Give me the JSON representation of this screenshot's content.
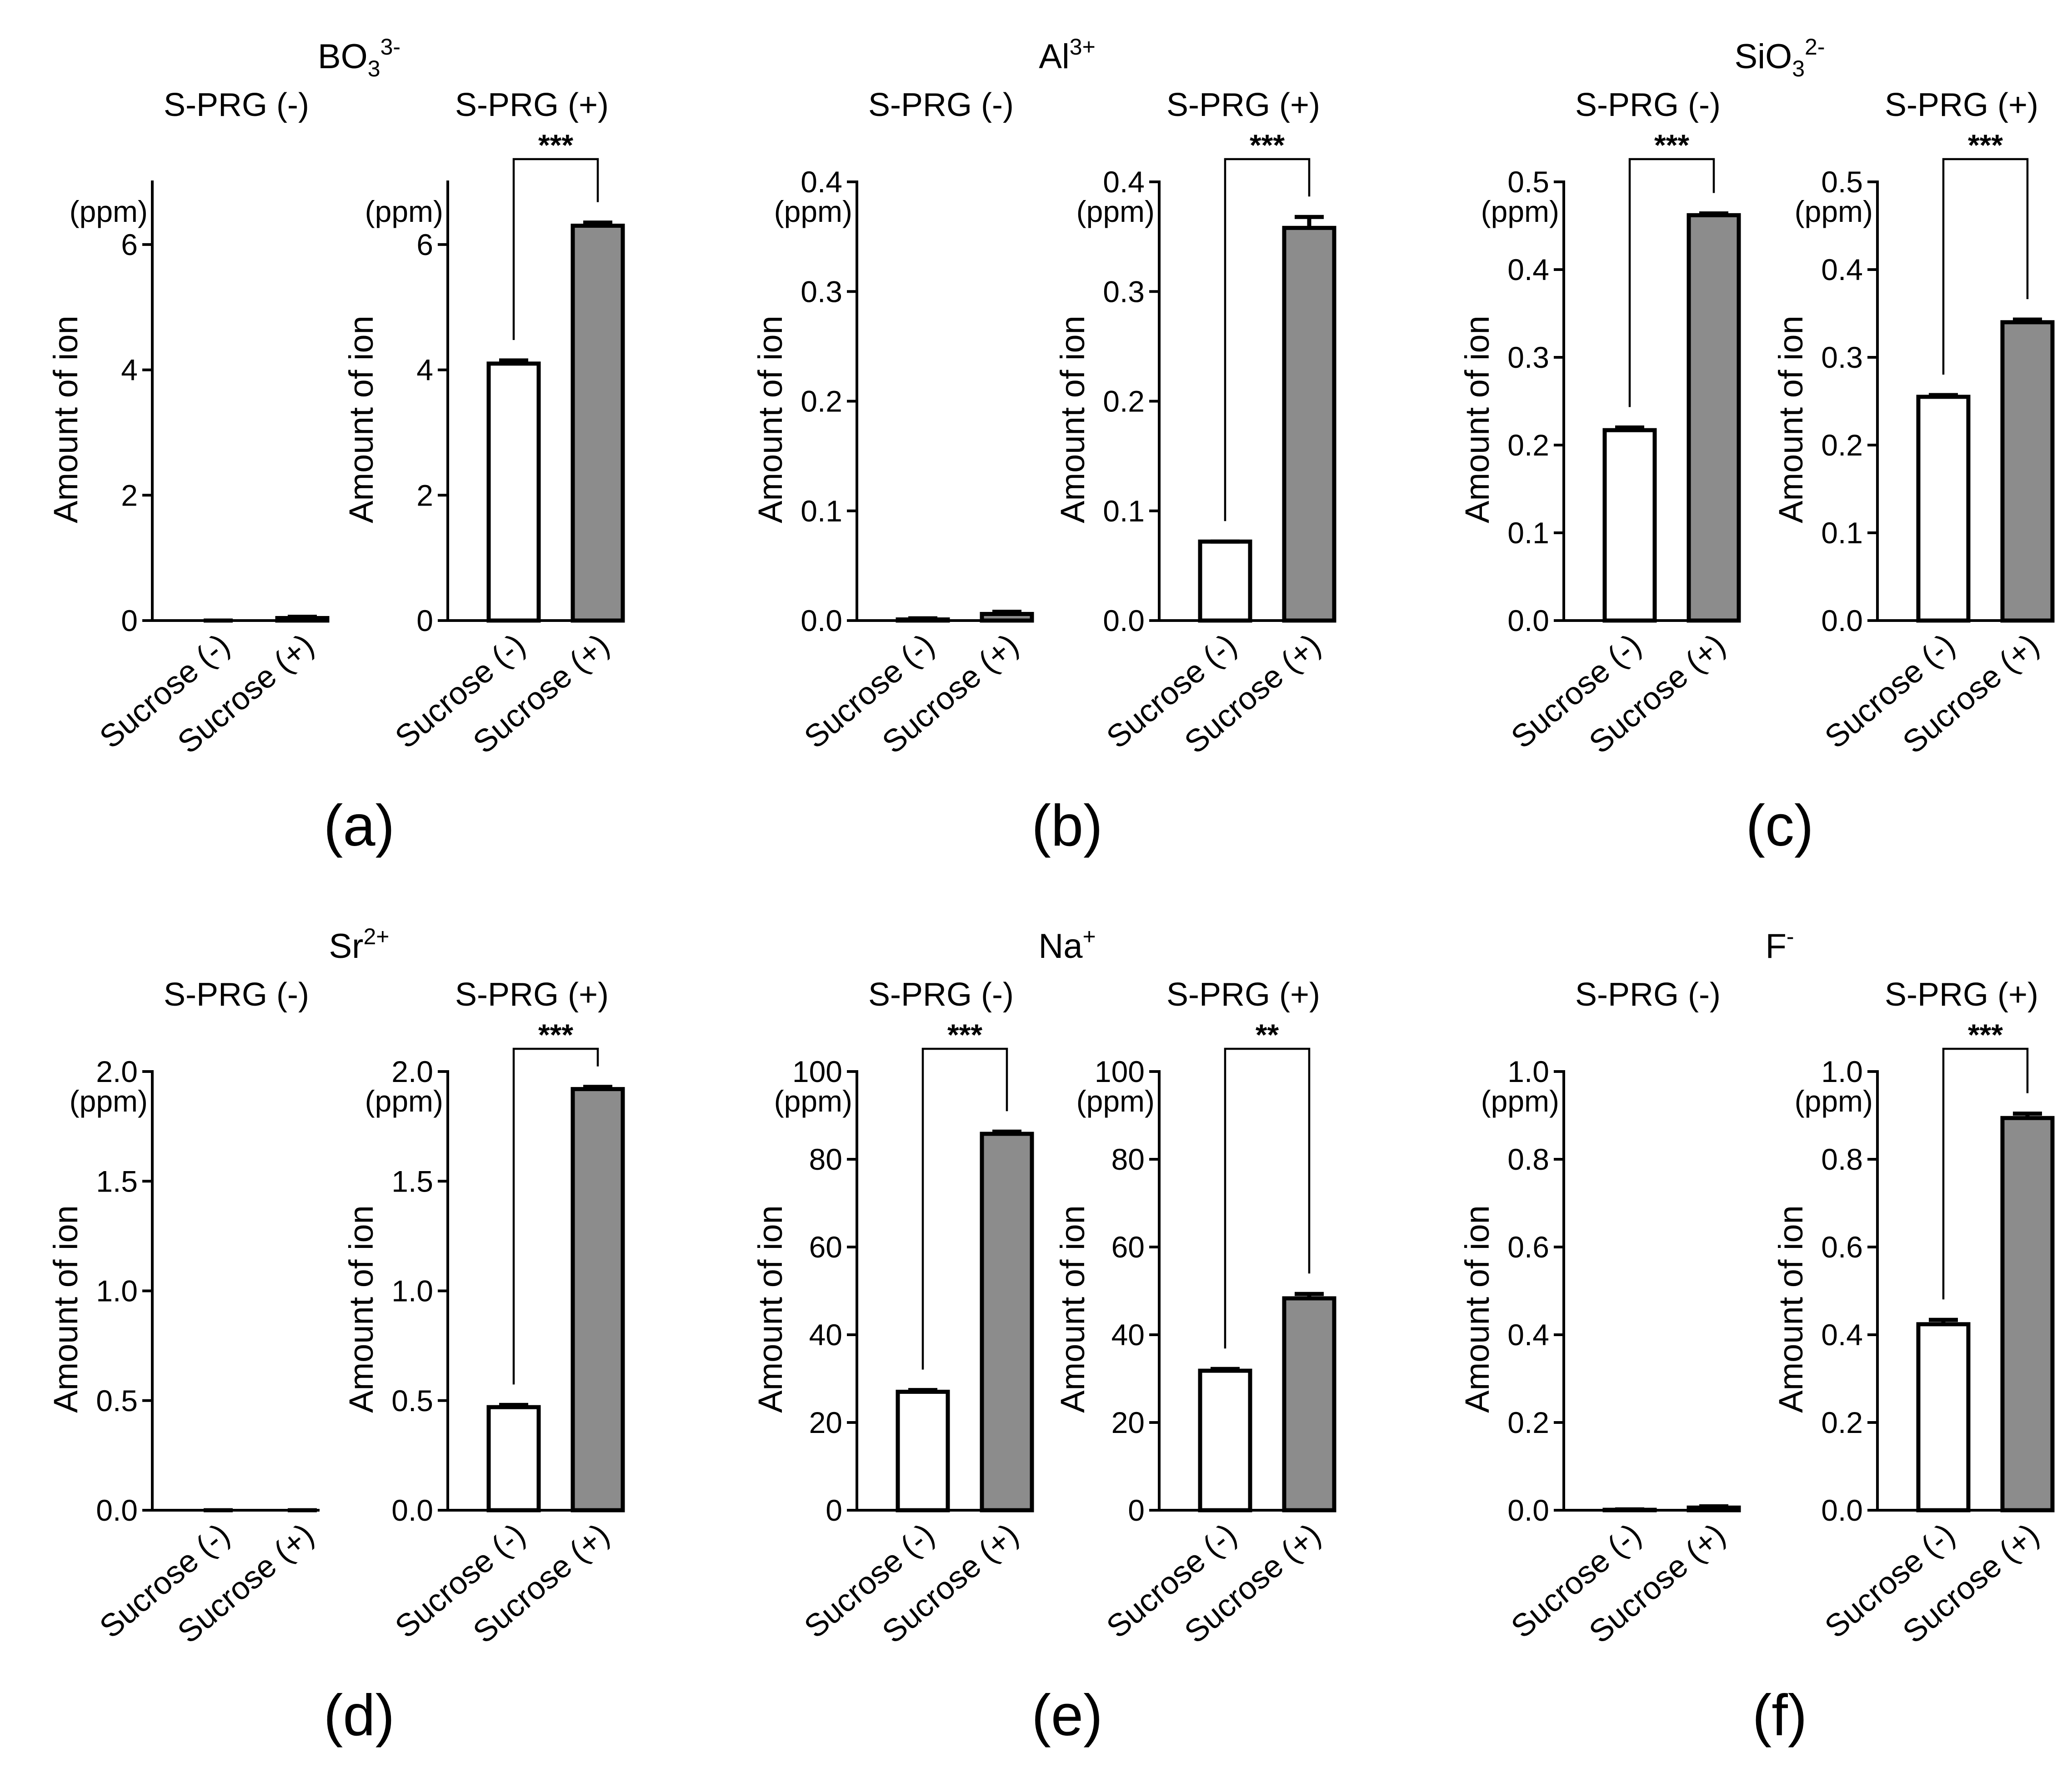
{
  "figure": {
    "unit_label": "(ppm)",
    "y_label": "Amount of ion",
    "categories": [
      "Sucrose (-)",
      "Sucrose (+)"
    ],
    "subplot_titles": [
      "S-PRG (-)",
      "S-PRG (+)"
    ],
    "colors": {
      "sucrose_minus": "#ffffff",
      "sucrose_plus": "#8c8c8c",
      "axis": "#000000"
    }
  },
  "chart_data": [
    {
      "panel_label": "(a)",
      "ion": {
        "base": "BO",
        "sub": "3",
        "sup": "3-"
      },
      "type": "bar",
      "yticks": [
        0,
        2,
        4,
        6
      ],
      "tick_labels": [
        "0",
        "2",
        "4",
        "6"
      ],
      "ylim": [
        0,
        7
      ],
      "subplots": [
        {
          "title": "S-PRG (-)",
          "values": [
            0.0,
            0.04
          ],
          "errors": [
            0.0,
            0.02
          ],
          "significance": ""
        },
        {
          "title": "S-PRG (+)",
          "values": [
            4.1,
            6.3
          ],
          "errors": [
            0.05,
            0.05
          ],
          "significance": "***"
        }
      ]
    },
    {
      "panel_label": "(b)",
      "ion": {
        "base": "Al",
        "sub": "",
        "sup": "3+"
      },
      "type": "bar",
      "yticks": [
        0.0,
        0.1,
        0.2,
        0.3,
        0.4
      ],
      "tick_labels": [
        "0.0",
        "0.1",
        "0.2",
        "0.3",
        "0.4"
      ],
      "ylim": [
        0,
        0.4
      ],
      "subplots": [
        {
          "title": "S-PRG (-)",
          "values": [
            0.001,
            0.006
          ],
          "errors": [
            0.001,
            0.002
          ],
          "significance": ""
        },
        {
          "title": "S-PRG (+)",
          "values": [
            0.072,
            0.358
          ],
          "errors": [
            0.0,
            0.01
          ],
          "significance": "***"
        }
      ]
    },
    {
      "panel_label": "(c)",
      "ion": {
        "base": "SiO",
        "sub": "3",
        "sup": "2-"
      },
      "type": "bar",
      "yticks": [
        0.0,
        0.1,
        0.2,
        0.3,
        0.4,
        0.5
      ],
      "tick_labels": [
        "0.0",
        "0.1",
        "0.2",
        "0.3",
        "0.4",
        "0.5"
      ],
      "ylim": [
        0,
        0.5
      ],
      "subplots": [
        {
          "title": "S-PRG (-)",
          "values": [
            0.217,
            0.462
          ],
          "errors": [
            0.003,
            0.002
          ],
          "significance": "***"
        },
        {
          "title": "S-PRG (+)",
          "values": [
            0.255,
            0.34
          ],
          "errors": [
            0.002,
            0.003
          ],
          "significance": "***"
        }
      ]
    },
    {
      "panel_label": "(d)",
      "ion": {
        "base": "Sr",
        "sub": "",
        "sup": "2+"
      },
      "type": "bar",
      "yticks": [
        0.0,
        0.5,
        1.0,
        1.5,
        2.0
      ],
      "tick_labels": [
        "0.0",
        "0.5",
        "1.0",
        "1.5",
        "2.0"
      ],
      "ylim": [
        0,
        2.0
      ],
      "subplots": [
        {
          "title": "S-PRG (-)",
          "values": [
            0.0,
            0.0
          ],
          "errors": [
            0.0,
            0.0
          ],
          "significance": ""
        },
        {
          "title": "S-PRG (+)",
          "values": [
            0.47,
            1.92
          ],
          "errors": [
            0.01,
            0.01
          ],
          "significance": "***"
        }
      ]
    },
    {
      "panel_label": "(e)",
      "ion": {
        "base": "Na",
        "sub": "",
        "sup": "+"
      },
      "type": "bar",
      "yticks": [
        0,
        20,
        40,
        60,
        80,
        100
      ],
      "tick_labels": [
        "0",
        "20",
        "40",
        "60",
        "80",
        "100"
      ],
      "ylim": [
        0,
        100
      ],
      "subplots": [
        {
          "title": "S-PRG (-)",
          "values": [
            27.0,
            85.8
          ],
          "errors": [
            0.4,
            0.5
          ],
          "significance": "***"
        },
        {
          "title": "S-PRG (+)",
          "values": [
            31.8,
            48.3
          ],
          "errors": [
            0.4,
            1.0
          ],
          "significance": "**"
        }
      ]
    },
    {
      "panel_label": "(f)",
      "ion": {
        "base": "F",
        "sub": "",
        "sup": "-"
      },
      "type": "bar",
      "yticks": [
        0.0,
        0.2,
        0.4,
        0.6,
        0.8,
        1.0
      ],
      "tick_labels": [
        "0.0",
        "0.2",
        "0.4",
        "0.6",
        "0.8",
        "1.0"
      ],
      "ylim": [
        0,
        1.0
      ],
      "subplots": [
        {
          "title": "S-PRG (-)",
          "values": [
            0.001,
            0.006
          ],
          "errors": [
            0.001,
            0.003
          ],
          "significance": ""
        },
        {
          "title": "S-PRG (+)",
          "values": [
            0.424,
            0.894
          ],
          "errors": [
            0.01,
            0.01
          ],
          "significance": "***"
        }
      ]
    }
  ]
}
